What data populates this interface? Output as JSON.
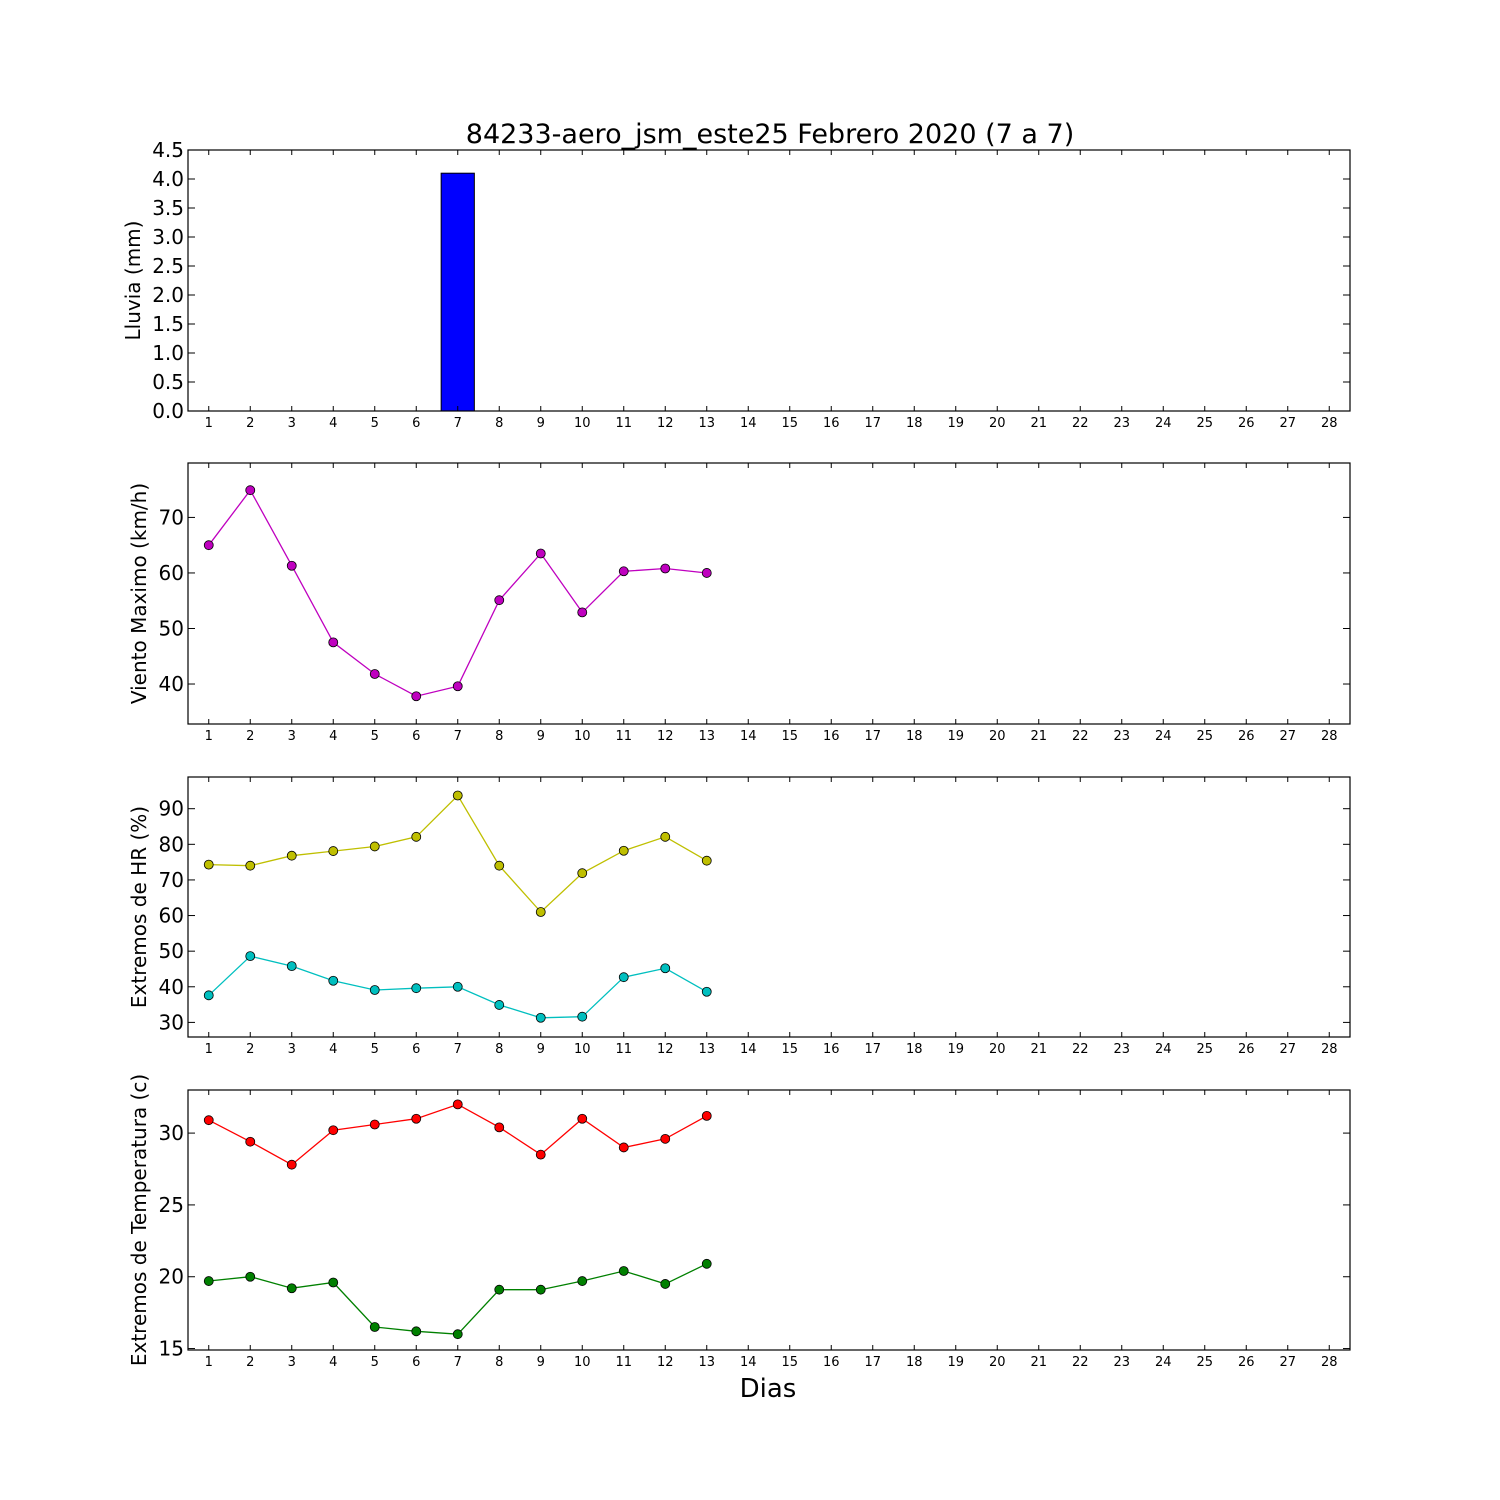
{
  "title": "84233-aero_jsm_este25 Febrero 2020  (7 a 7)",
  "xlabel": "Dias",
  "chart_data": [
    {
      "type": "bar",
      "ylabel": "Lluvia (mm)",
      "x_ticks": [
        1,
        2,
        3,
        4,
        5,
        6,
        7,
        8,
        9,
        10,
        11,
        12,
        13,
        14,
        15,
        16,
        17,
        18,
        19,
        20,
        21,
        22,
        23,
        24,
        25,
        26,
        27,
        28
      ],
      "xlim": [
        0.5,
        28.5
      ],
      "ylim": [
        0,
        4.5
      ],
      "y_ticks": [
        "0.0",
        "0.5",
        "1.0",
        "1.5",
        "2.0",
        "2.5",
        "3.0",
        "3.5",
        "4.0",
        "4.5"
      ],
      "bars": [
        {
          "x": 1,
          "value": 0
        },
        {
          "x": 2,
          "value": 0
        },
        {
          "x": 3,
          "value": 0
        },
        {
          "x": 4,
          "value": 0
        },
        {
          "x": 5,
          "value": 0
        },
        {
          "x": 6,
          "value": 0
        },
        {
          "x": 7,
          "value": 4.1
        },
        {
          "x": 8,
          "value": 0
        },
        {
          "x": 9,
          "value": 0
        },
        {
          "x": 10,
          "value": 0
        },
        {
          "x": 11,
          "value": 0
        },
        {
          "x": 12,
          "value": 0
        },
        {
          "x": 13,
          "value": 0
        }
      ],
      "bar_color": "#0000ff"
    },
    {
      "type": "line",
      "ylabel": "Viento Maximo (km/h)",
      "x_ticks": [
        1,
        2,
        3,
        4,
        5,
        6,
        7,
        8,
        9,
        10,
        11,
        12,
        13,
        14,
        15,
        16,
        17,
        18,
        19,
        20,
        21,
        22,
        23,
        24,
        25,
        26,
        27,
        28
      ],
      "xlim": [
        0.5,
        28.5
      ],
      "ylim": [
        32.8,
        79.8
      ],
      "y_ticks": [
        "40",
        "50",
        "60",
        "70"
      ],
      "series": [
        {
          "color": "#bf00bf",
          "x": [
            1,
            2,
            3,
            4,
            5,
            6,
            7,
            8,
            9,
            10,
            11,
            12,
            13
          ],
          "values": [
            65.0,
            74.9,
            61.3,
            47.5,
            41.8,
            37.8,
            39.6,
            55.1,
            63.5,
            52.9,
            60.3,
            60.8,
            60.0
          ]
        }
      ]
    },
    {
      "type": "line",
      "ylabel": "Extremos de HR (%)",
      "x_ticks": [
        1,
        2,
        3,
        4,
        5,
        6,
        7,
        8,
        9,
        10,
        11,
        12,
        13,
        14,
        15,
        16,
        17,
        18,
        19,
        20,
        21,
        22,
        23,
        24,
        25,
        26,
        27,
        28
      ],
      "xlim": [
        0.5,
        28.5
      ],
      "ylim": [
        25.9,
        98.9
      ],
      "y_ticks": [
        "30",
        "40",
        "50",
        "60",
        "70",
        "80",
        "90"
      ],
      "series": [
        {
          "color": "#bfbf00",
          "x": [
            1,
            2,
            3,
            4,
            5,
            6,
            7,
            8,
            9,
            10,
            11,
            12,
            13
          ],
          "values": [
            74.3,
            74.0,
            76.8,
            78.1,
            79.4,
            82.1,
            93.7,
            74.0,
            61.0,
            71.9,
            78.2,
            82.1,
            75.4
          ]
        },
        {
          "color": "#00bfbf",
          "x": [
            1,
            2,
            3,
            4,
            5,
            6,
            7,
            8,
            9,
            10,
            11,
            12,
            13
          ],
          "values": [
            37.6,
            48.6,
            45.8,
            41.7,
            39.1,
            39.6,
            40.0,
            34.9,
            31.3,
            31.6,
            42.7,
            45.2,
            38.6
          ]
        }
      ]
    },
    {
      "type": "line",
      "ylabel": "Extremos de Temperatura (c)",
      "x_ticks": [
        1,
        2,
        3,
        4,
        5,
        6,
        7,
        8,
        9,
        10,
        11,
        12,
        13,
        14,
        15,
        16,
        17,
        18,
        19,
        20,
        21,
        22,
        23,
        24,
        25,
        26,
        27,
        28
      ],
      "xlim": [
        0.5,
        28.5
      ],
      "ylim": [
        14.9,
        33.0
      ],
      "y_ticks": [
        "15",
        "20",
        "25",
        "30"
      ],
      "series": [
        {
          "color": "#ff0000",
          "x": [
            1,
            2,
            3,
            4,
            5,
            6,
            7,
            8,
            9,
            10,
            11,
            12,
            13
          ],
          "values": [
            30.9,
            29.4,
            27.8,
            30.2,
            30.6,
            31.0,
            32.0,
            30.4,
            28.5,
            31.0,
            29.0,
            29.6,
            31.2
          ]
        },
        {
          "color": "#008000",
          "x": [
            1,
            2,
            3,
            4,
            5,
            6,
            7,
            8,
            9,
            10,
            11,
            12,
            13
          ],
          "values": [
            19.7,
            20.0,
            19.2,
            19.6,
            16.5,
            16.2,
            16.0,
            19.1,
            19.1,
            19.7,
            20.4,
            19.5,
            20.9
          ]
        }
      ]
    }
  ]
}
